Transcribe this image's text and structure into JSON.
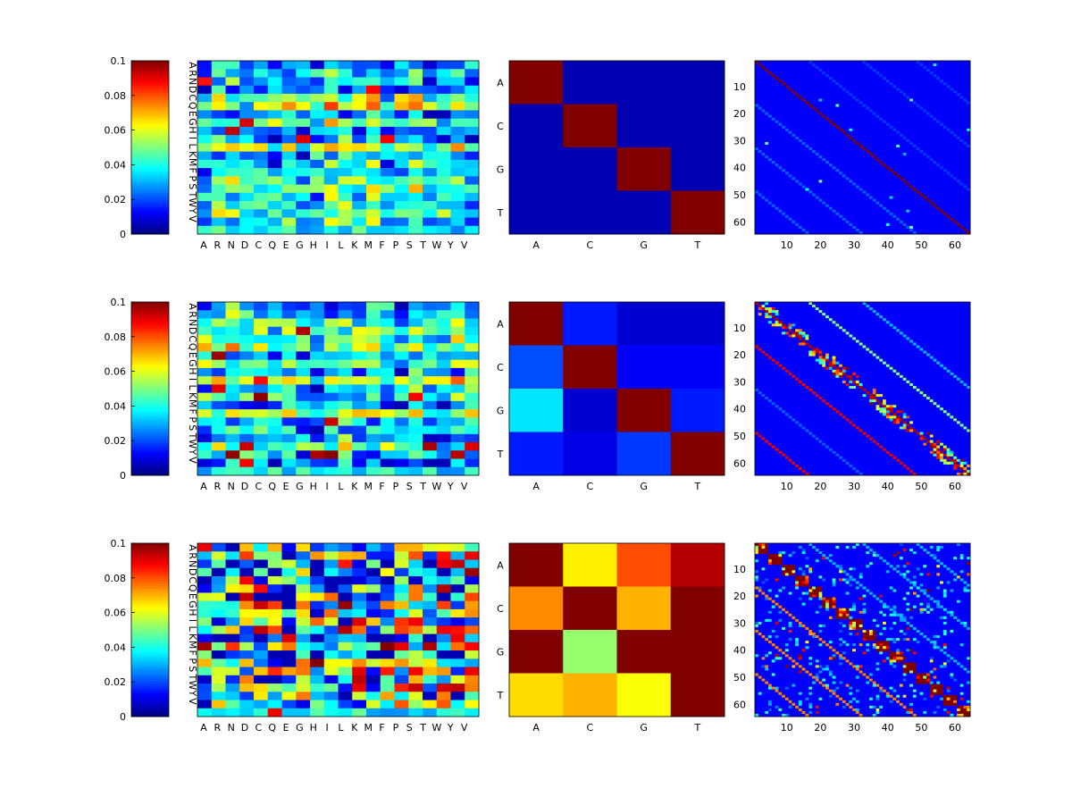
{
  "colormap": "jet",
  "colorbar": {
    "clim": [
      0,
      0.1
    ],
    "ticks": [
      "0",
      "0.02",
      "0.04",
      "0.06",
      "0.08",
      "0.1"
    ]
  },
  "amino_acids": [
    "A",
    "R",
    "N",
    "D",
    "C",
    "Q",
    "E",
    "G",
    "H",
    "I",
    "L",
    "K",
    "M",
    "F",
    "P",
    "S",
    "T",
    "W",
    "Y",
    "V"
  ],
  "nucleotides": [
    "A",
    "C",
    "G",
    "T"
  ],
  "codon_ticks": [
    "10",
    "20",
    "30",
    "40",
    "50",
    "60"
  ],
  "chart_data": [
    {
      "type": "heatmap",
      "name": "aa-matrix-1",
      "rows": 20,
      "cols": 20,
      "clim": [
        0,
        0.1
      ],
      "values": "procedural-seed-11"
    },
    {
      "type": "heatmap",
      "name": "nt-matrix-1",
      "categories": [
        "A",
        "C",
        "G",
        "T"
      ],
      "clim": [
        0,
        0.1
      ],
      "values": [
        [
          0.1,
          0.005,
          0.005,
          0.005
        ],
        [
          0.005,
          0.1,
          0.005,
          0.005
        ],
        [
          0.005,
          0.005,
          0.1,
          0.005
        ],
        [
          0.005,
          0.005,
          0.005,
          0.1
        ]
      ]
    },
    {
      "type": "heatmap",
      "name": "codon-matrix-1",
      "n": 64,
      "clim": [
        0,
        0.1
      ],
      "structure": "diagonal"
    },
    {
      "type": "heatmap",
      "name": "aa-matrix-2",
      "rows": 20,
      "cols": 20,
      "clim": [
        0,
        0.1
      ],
      "values": "procedural-seed-23"
    },
    {
      "type": "heatmap",
      "name": "nt-matrix-2",
      "categories": [
        "A",
        "C",
        "G",
        "T"
      ],
      "clim": [
        0,
        0.1
      ],
      "values": [
        [
          0.1,
          0.015,
          0.008,
          0.008
        ],
        [
          0.02,
          0.1,
          0.012,
          0.012
        ],
        [
          0.035,
          0.008,
          0.1,
          0.015
        ],
        [
          0.015,
          0.01,
          0.018,
          0.1
        ]
      ]
    },
    {
      "type": "heatmap",
      "name": "codon-matrix-2",
      "n": 64,
      "clim": [
        0,
        0.1
      ],
      "structure": "block-diagonal-with-offsets"
    },
    {
      "type": "heatmap",
      "name": "aa-matrix-3",
      "rows": 20,
      "cols": 20,
      "clim": [
        0,
        0.1
      ],
      "values": "procedural-seed-37"
    },
    {
      "type": "heatmap",
      "name": "nt-matrix-3",
      "categories": [
        "A",
        "C",
        "G",
        "T"
      ],
      "clim": [
        0,
        0.1
      ],
      "values": [
        [
          0.1,
          0.064,
          0.08,
          0.095
        ],
        [
          0.074,
          0.1,
          0.07,
          0.1
        ],
        [
          0.1,
          0.052,
          0.1,
          0.1
        ],
        [
          0.066,
          0.07,
          0.062,
          0.1
        ]
      ]
    },
    {
      "type": "heatmap",
      "name": "codon-matrix-3",
      "n": 64,
      "clim": [
        0,
        0.1
      ],
      "structure": "noisy-block-diagonal"
    }
  ]
}
